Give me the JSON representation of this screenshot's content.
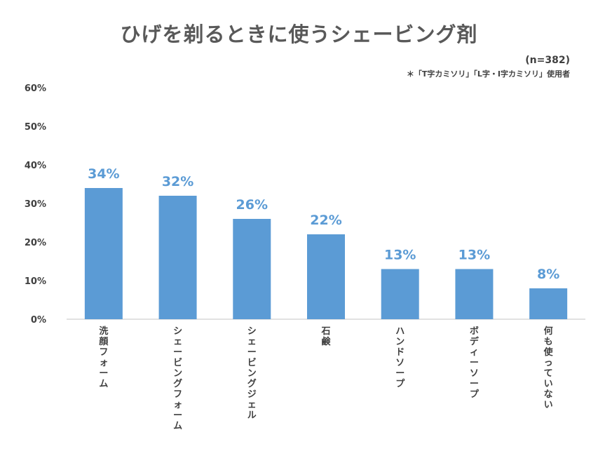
{
  "header": {
    "title": "ひげを剃るときに使うシェービング剤",
    "sample_size": "(n=382)",
    "note": "＊「T字カミソリ」「L字・I字カミソリ」使用者"
  },
  "chart_data": {
    "type": "bar",
    "title": "ひげを剃るときに使うシェービング剤",
    "categories": [
      "洗顔フォーム",
      "シェービングフォーム",
      "シェービングジェル",
      "石鹸",
      "ハンドソープ",
      "ボディーソープ",
      "何も使っていない"
    ],
    "values": [
      34,
      32,
      26,
      22,
      13,
      13,
      8
    ],
    "value_labels": [
      "34%",
      "32%",
      "26%",
      "22%",
      "13%",
      "13%",
      "8%"
    ],
    "yticks": [
      "0%",
      "10%",
      "20%",
      "30%",
      "40%",
      "50%",
      "60%"
    ],
    "ylim": [
      0,
      60
    ],
    "grid": false,
    "colors": {
      "bar": "#5B9BD5",
      "label": "#5B9BD5",
      "axis": "#D9D9D9",
      "tick_text": "#404040"
    }
  }
}
